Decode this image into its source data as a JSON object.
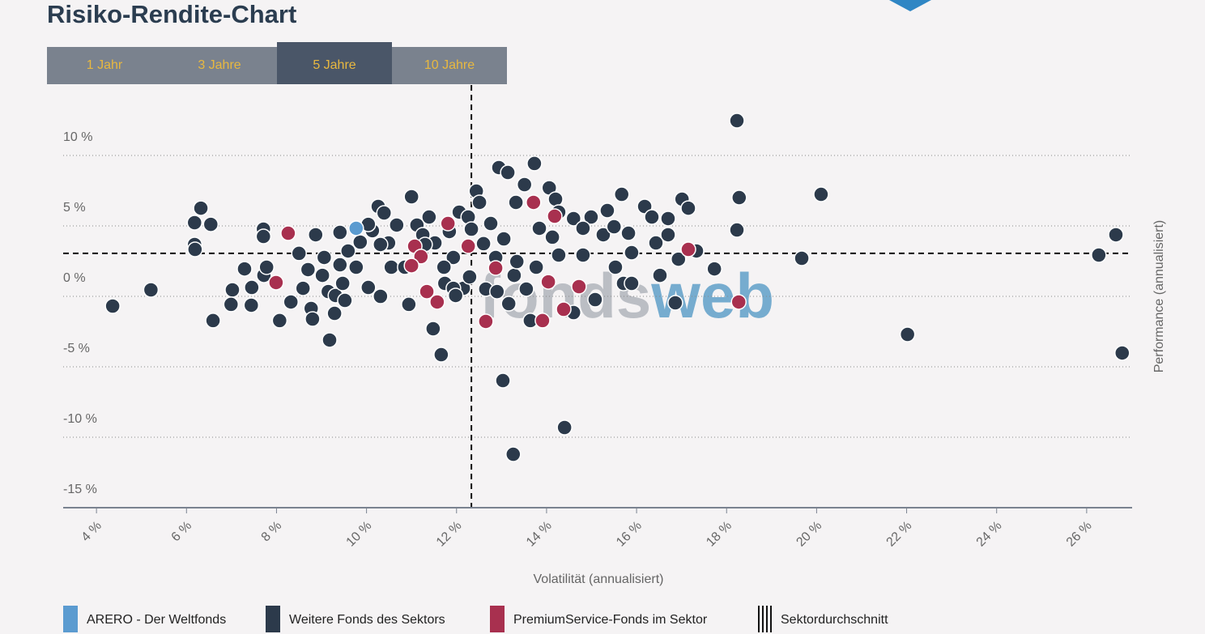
{
  "title": "Risiko-Rendite-Chart",
  "tabs": {
    "items": [
      "1 Jahr",
      "3 Jahre",
      "5 Jahre",
      "10 Jahre"
    ],
    "active": 2
  },
  "chart_data": {
    "type": "scatter",
    "xlabel": "Volatilität (annualisiert)",
    "ylabel": "Performance (annualisiert)",
    "xlim": [
      3.26,
      27.01
    ],
    "ylim": [
      -15,
      15
    ],
    "xticks": [
      {
        "value": 4,
        "label": "4 %"
      },
      {
        "value": 6,
        "label": "6 %"
      },
      {
        "value": 8,
        "label": "8 %"
      },
      {
        "value": 10,
        "label": "10 %"
      },
      {
        "value": 12,
        "label": "12 %"
      },
      {
        "value": 14,
        "label": "14 %"
      },
      {
        "value": 16,
        "label": "16 %"
      },
      {
        "value": 18,
        "label": "18 %"
      },
      {
        "value": 20,
        "label": "20 %"
      },
      {
        "value": 22,
        "label": "22 %"
      },
      {
        "value": 24,
        "label": "24 %"
      },
      {
        "value": 26,
        "label": "26 %"
      }
    ],
    "yticks": [
      {
        "value": 10,
        "label": "10 %"
      },
      {
        "value": 5,
        "label": "5 %"
      },
      {
        "value": 0,
        "label": "0 %"
      },
      {
        "value": -5,
        "label": "-5 %"
      },
      {
        "value": -10,
        "label": "-10 %"
      },
      {
        "value": -15,
        "label": "-15 %"
      }
    ],
    "grid": true,
    "sector_average": {
      "name": "Sektordurchschnitt",
      "x": 12.33,
      "y": 3.05
    },
    "watermark": [
      "fonds",
      "web"
    ],
    "series": [
      {
        "name": "Weitere Fonds des Sektors",
        "color": "#2c3a4b",
        "x": [
          4.36,
          5.21,
          6.18,
          6.19,
          6.18,
          6.32,
          6.54,
          6.59,
          7.02,
          6.99,
          7.29,
          7.45,
          7.44,
          7.71,
          7.71,
          7.72,
          7.78,
          8.07,
          8.32,
          8.5,
          8.59,
          8.77,
          8.8,
          9.06,
          9.15,
          9.18,
          9.29,
          9.31,
          9.41,
          9.47,
          9.52,
          9.59,
          9.77,
          9.86,
          10.04,
          10.13,
          10.26,
          10.31,
          10.39,
          10.49,
          10.55,
          10.67,
          10.85,
          10.94,
          11.0,
          11.12,
          11.25,
          11.39,
          11.48,
          11.52,
          11.66,
          11.74,
          11.84,
          11.93,
          12.06,
          12.15,
          12.26,
          12.33,
          12.44,
          12.51,
          12.6,
          12.76,
          12.87,
          12.94,
          13.05,
          13.14,
          13.28,
          13.32,
          13.51,
          13.64,
          13.73,
          13.84,
          14.06,
          14.13,
          14.2,
          14.27,
          14.4,
          14.6,
          14.81,
          14.99,
          15.26,
          15.35,
          15.5,
          15.67,
          15.71,
          15.82,
          15.89,
          16.18,
          16.34,
          16.52,
          16.7,
          16.86,
          16.93,
          17.01,
          17.15,
          17.33,
          17.73,
          18.23,
          18.23,
          18.28,
          19.67,
          20.1,
          22.02,
          26.27,
          26.65,
          26.79,
          13.03,
          13.26,
          14.6,
          13.34,
          12.65,
          11.93,
          11.72,
          11.3,
          10.31,
          10.04,
          9.41,
          9.02,
          8.7,
          8.87,
          11.98,
          12.29,
          12.9,
          13.16,
          13.55,
          13.77,
          14.27,
          14.81,
          15.08,
          15.53,
          15.89,
          16.43,
          16.7
        ],
        "values": [
          -0.69,
          0.46,
          3.68,
          3.33,
          5.23,
          6.26,
          5.11,
          -1.72,
          0.46,
          -0.57,
          1.95,
          0.63,
          -0.63,
          4.77,
          4.25,
          1.49,
          2.07,
          -1.72,
          -0.4,
          3.05,
          0.57,
          -0.86,
          -1.61,
          2.76,
          0.34,
          -3.1,
          -1.21,
          0.06,
          4.54,
          0.92,
          -0.29,
          3.22,
          2.07,
          3.85,
          0.63,
          4.66,
          6.38,
          0,
          5.92,
          3.79,
          2.07,
          5.06,
          2.07,
          -0.57,
          7.07,
          5.06,
          4.37,
          5.63,
          -2.3,
          3.79,
          -4.14,
          0.92,
          4.6,
          2.76,
          5.98,
          0.57,
          5.63,
          4.77,
          7.47,
          6.67,
          3.74,
          5.17,
          2.76,
          9.14,
          4.08,
          8.79,
          1.49,
          6.67,
          7.93,
          -1.72,
          9.43,
          4.83,
          7.7,
          4.2,
          6.9,
          2.93,
          -9.31,
          5.52,
          2.93,
          5.63,
          4.37,
          6.09,
          4.94,
          7.24,
          0.92,
          4.48,
          3.1,
          6.38,
          5.63,
          1.49,
          5.52,
          -0.46,
          2.64,
          6.9,
          6.26,
          3.22,
          1.95,
          12.47,
          4.71,
          7.01,
          2.7,
          7.24,
          -2.7,
          2.93,
          4.37,
          -4.02,
          -5.98,
          -11.21,
          -1.15,
          2.47,
          0.52,
          0.57,
          2.07,
          3.68,
          3.68,
          5.11,
          2.24,
          1.49,
          1.9,
          4.37,
          0.06,
          1.38,
          0.34,
          -0.52,
          0.52,
          2.07,
          5.98,
          4.83,
          -0.23,
          2.07,
          0.92,
          3.79,
          4.37
        ]
      },
      {
        "name": "PremiumService-Fonds im Sektor",
        "color": "#a8304f",
        "x": [
          8.26,
          7.99,
          11.07,
          11.21,
          11.0,
          11.34,
          11.57,
          11.81,
          12.26,
          12.87,
          12.65,
          13.71,
          14.18,
          14.04,
          14.72,
          14.38,
          13.91,
          17.15,
          18.27
        ],
        "values": [
          4.48,
          0.98,
          3.56,
          2.82,
          2.18,
          0.34,
          -0.4,
          5.17,
          3.56,
          2.01,
          -1.78,
          6.67,
          5.69,
          1.03,
          0.69,
          -0.92,
          -1.72,
          3.33,
          -0.4
        ]
      },
      {
        "name": "ARERO - Der Weltfonds",
        "color": "#5b9bd0",
        "x": [
          9.77
        ],
        "values": [
          4.83
        ]
      }
    ]
  }
}
